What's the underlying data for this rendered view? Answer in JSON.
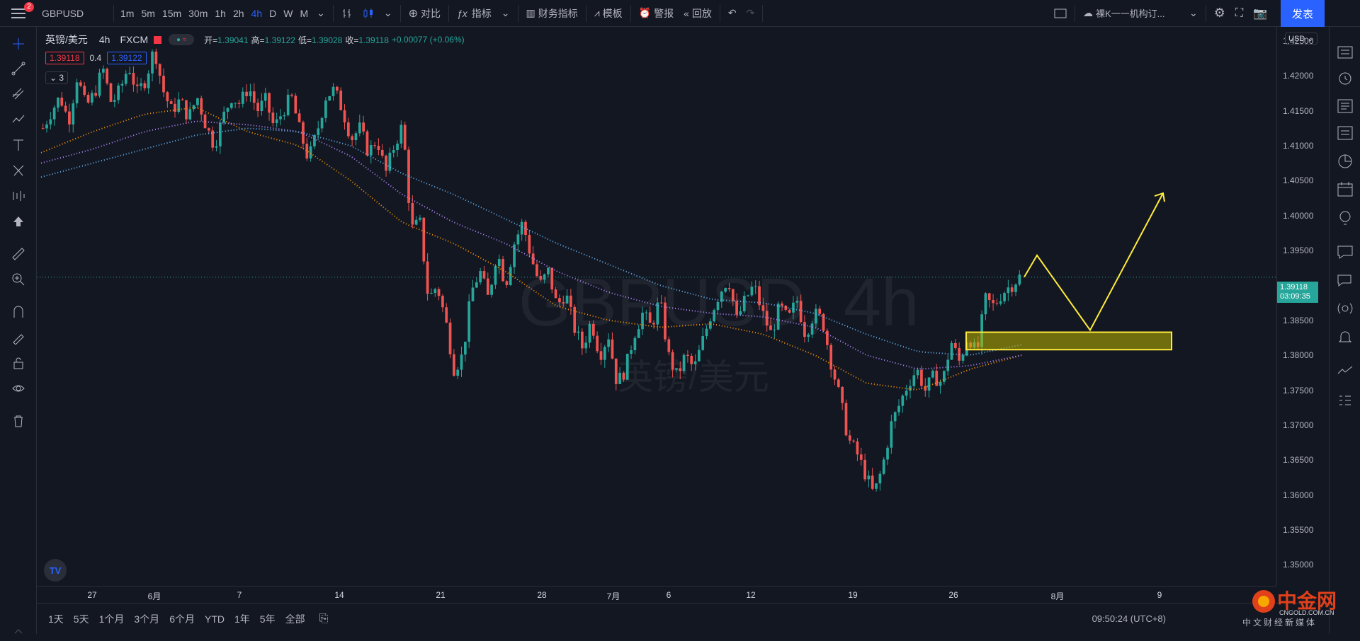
{
  "toolbar": {
    "notification_count": "2",
    "symbol": "GBPUSD",
    "intervals": [
      "1m",
      "5m",
      "15m",
      "30m",
      "1h",
      "2h",
      "4h",
      "D",
      "W",
      "M"
    ],
    "active_interval": "4h",
    "compare_label": "对比",
    "indicators_label": "指标",
    "financials_label": "财务指标",
    "templates_label": "模板",
    "alert_label": "警报",
    "replay_label": "回放",
    "layout_name": "裸K一一机构订...",
    "publish_label": "发表"
  },
  "legend": {
    "symbol_name": "英镑/美元",
    "interval": "4h",
    "source": "FXCM",
    "open_label": "开=",
    "open": "1.39041",
    "high_label": "高=",
    "high": "1.39122",
    "low_label": "低=",
    "low": "1.39028",
    "close_label": "收=",
    "close": "1.39118",
    "change": "+0.00077 (+0.06%)",
    "bid": "1.39118",
    "spread": "0.4",
    "ask": "1.39122",
    "collapsed_count": "3"
  },
  "watermark": {
    "line1": "GBPUSD, 4h",
    "line2": "英镑/美元"
  },
  "price_axis": {
    "currency": "USD",
    "ticks": [
      "1.42500",
      "1.42000",
      "1.41500",
      "1.41000",
      "1.40500",
      "1.40000",
      "1.39500",
      "1.38500",
      "1.38000",
      "1.37500",
      "1.37000",
      "1.36500",
      "1.36000",
      "1.35500",
      "1.35000"
    ],
    "current_price": "1.39118",
    "countdown": "03:09:35"
  },
  "time_axis": {
    "ticks": [
      "27",
      "6月",
      "7",
      "14",
      "21",
      "28",
      "7月",
      "6",
      "12",
      "19",
      "26",
      "8月",
      "9"
    ]
  },
  "bottom": {
    "ranges": [
      "1天",
      "5天",
      "1个月",
      "3个月",
      "6个月",
      "YTD",
      "1年",
      "5年",
      "全部"
    ],
    "clock": "09:50:24 (UTC+8)"
  },
  "site_watermark": {
    "name": "中金网",
    "url": "CNGOLD.COM.CN",
    "sub": "中文财经新媒体"
  },
  "colors": {
    "up": "#26a69a",
    "down": "#ef5350",
    "ma_fast": "#ff9800",
    "ma_mid": "#b388ff",
    "ma_slow": "#64b5f6",
    "annotation": "#ffeb3b",
    "accent": "#2962ff"
  },
  "chart_data": {
    "type": "candlestick",
    "symbol": "GBPUSD",
    "timeframe": "4h",
    "ylim": [
      1.347,
      1.427
    ],
    "x_ticks": [
      "27",
      "6月",
      "7",
      "14",
      "21",
      "28",
      "7月",
      "6",
      "12",
      "19",
      "26",
      "8月",
      "9"
    ],
    "close_path": [
      1.4125,
      1.415,
      1.417,
      1.4135,
      1.42,
      1.4155,
      1.4175,
      1.421,
      1.416,
      1.418,
      1.4215,
      1.4175,
      1.4195,
      1.424,
      1.418,
      1.415,
      1.4165,
      1.414,
      1.417,
      1.413,
      1.41,
      1.414,
      1.417,
      1.416,
      1.4185,
      1.415,
      1.4165,
      1.4125,
      1.415,
      1.417,
      1.412,
      1.408,
      1.412,
      1.417,
      1.418,
      1.415,
      1.411,
      1.4125,
      1.409,
      1.411,
      1.406,
      1.41,
      1.413,
      1.398,
      1.399,
      1.388,
      1.39,
      1.385,
      1.378,
      1.38,
      1.389,
      1.392,
      1.388,
      1.395,
      1.39,
      1.396,
      1.399,
      1.394,
      1.39,
      1.392,
      1.387,
      1.389,
      1.384,
      1.381,
      1.385,
      1.38,
      1.383,
      1.376,
      1.378,
      1.383,
      1.386,
      1.384,
      1.388,
      1.38,
      1.377,
      1.38,
      1.378,
      1.382,
      1.386,
      1.389,
      1.391,
      1.385,
      1.388,
      1.39,
      1.386,
      1.383,
      1.387,
      1.385,
      1.388,
      1.383,
      1.386,
      1.385,
      1.379,
      1.374,
      1.368,
      1.366,
      1.363,
      1.36,
      1.364,
      1.37,
      1.373,
      1.376,
      1.378,
      1.375,
      1.377,
      1.376,
      1.382,
      1.379,
      1.383,
      1.38,
      1.388,
      1.387,
      1.389,
      1.39,
      1.3912
    ],
    "series": [
      {
        "name": "MA fast",
        "color": "#ff9800",
        "values": [
          1.409,
          1.412,
          1.4145,
          1.4155,
          1.412,
          1.41,
          1.405,
          1.399,
          1.396,
          1.392,
          1.387,
          1.385,
          1.384,
          1.3845,
          1.383,
          1.38,
          1.376,
          1.375,
          1.378,
          1.38
        ]
      },
      {
        "name": "MA mid",
        "color": "#b388ff",
        "values": [
          1.4075,
          1.4095,
          1.412,
          1.4135,
          1.413,
          1.412,
          1.4085,
          1.403,
          1.399,
          1.396,
          1.392,
          1.389,
          1.387,
          1.386,
          1.3855,
          1.384,
          1.38,
          1.378,
          1.3785,
          1.38
        ]
      },
      {
        "name": "MA slow",
        "color": "#64b5f6",
        "values": [
          1.4055,
          1.4075,
          1.4095,
          1.4115,
          1.4125,
          1.412,
          1.41,
          1.406,
          1.403,
          1.3995,
          1.396,
          1.393,
          1.39,
          1.388,
          1.3875,
          1.386,
          1.383,
          1.3805,
          1.38,
          1.3815
        ]
      }
    ],
    "annotations": {
      "zone": {
        "from": 1.3808,
        "to": 1.3833,
        "color": "#ffeb3b"
      },
      "projection": [
        1.3912,
        1.3943,
        1.3836,
        1.4032
      ]
    },
    "grid": false
  }
}
